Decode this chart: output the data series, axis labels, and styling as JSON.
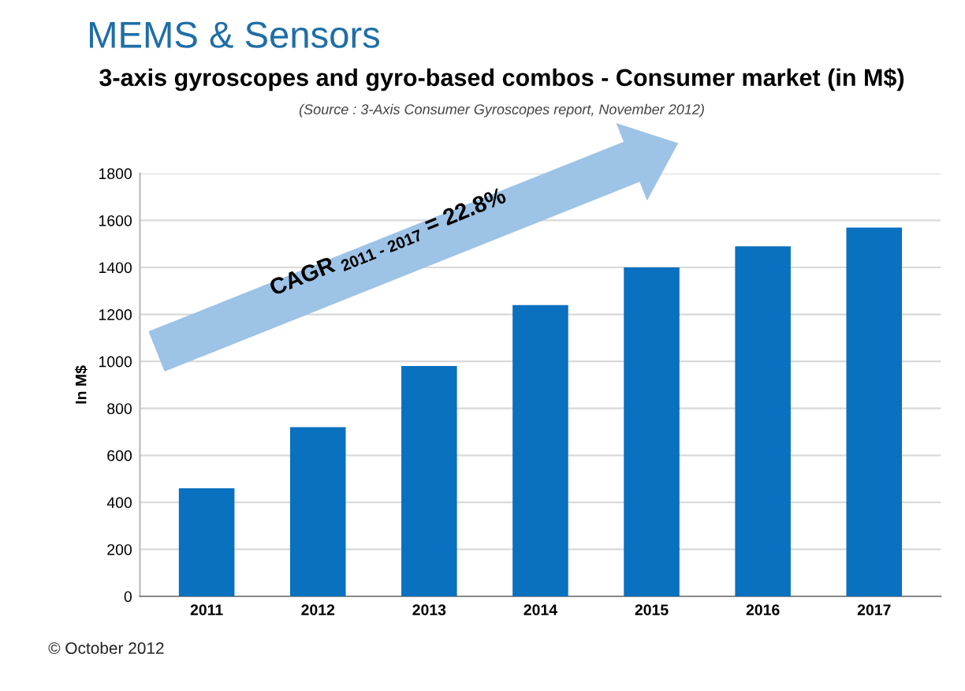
{
  "chart_data": {
    "type": "bar",
    "title": "MEMS & Sensors",
    "subtitle": "3-axis gyroscopes and gyro-based combos - Consumer market (in M$)",
    "ylabel": "In M$",
    "categories": [
      "2011",
      "2012",
      "2013",
      "2014",
      "2015",
      "2016",
      "2017"
    ],
    "values": [
      460,
      720,
      980,
      1240,
      1400,
      1490,
      1570
    ],
    "color": "#0a70c0",
    "ylim": [
      0,
      1800
    ],
    "yticks": [
      0,
      200,
      400,
      600,
      800,
      1000,
      1200,
      1400,
      1600,
      1800
    ],
    "grid": "y",
    "annotations": [
      "(Source : 3-Axis Consumer Gyroscopes report, November 2012)",
      "CAGR $_{2011 - 2017}$ = 22.8%",
      "© October 2012"
    ]
  }
}
